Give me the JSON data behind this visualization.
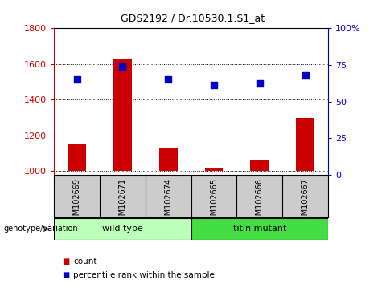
{
  "title": "GDS2192 / Dr.10530.1.S1_at",
  "samples": [
    "GSM102669",
    "GSM102671",
    "GSM102674",
    "GSM102665",
    "GSM102666",
    "GSM102667"
  ],
  "counts": [
    1155,
    1630,
    1130,
    1015,
    1060,
    1300
  ],
  "percentile_values": [
    65.0,
    73.75,
    65.0,
    61.25,
    62.5,
    68.125
  ],
  "ylim_left": [
    980,
    1800
  ],
  "ylim_right": [
    0,
    100
  ],
  "bar_bottom": 1000,
  "yticks_left": [
    1000,
    1200,
    1400,
    1600,
    1800
  ],
  "yticks_right": [
    0,
    25,
    50,
    75,
    100
  ],
  "ytick_labels_right": [
    "0",
    "25",
    "50",
    "75",
    "100%"
  ],
  "bar_color": "#cc0000",
  "scatter_color": "#0000cc",
  "left_tick_color": "#cc0000",
  "right_tick_color": "#0000cc",
  "groups": [
    {
      "label": "wild type",
      "color": "#bbffbb",
      "n": 3
    },
    {
      "label": "titin mutant",
      "color": "#44dd44",
      "n": 3
    }
  ],
  "group_label": "genotype/variation",
  "legend_count_label": "count",
  "legend_percentile_label": "percentile rank within the sample",
  "tick_area_bg": "#cccccc",
  "bar_width": 0.4,
  "title_fontsize": 9,
  "axis_fontsize": 8,
  "sample_fontsize": 7,
  "legend_fontsize": 7.5,
  "group_fontsize": 8
}
